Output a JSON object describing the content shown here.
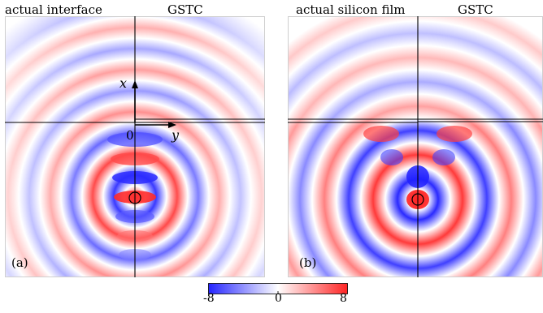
{
  "panel_a": {
    "left_title": "actual interface",
    "right_title": "GSTC",
    "tag": "(a)",
    "axis_x": "x",
    "axis_y": "y",
    "origin": "0"
  },
  "panel_b": {
    "left_title": "actual silicon film",
    "right_title": "GSTC",
    "tag": "(b)"
  },
  "colorbar": {
    "min_label": "-8",
    "mid_label": "0",
    "max_label": "8",
    "colors": {
      "low": "#2424ff",
      "mid": "#ffffff",
      "high": "#ff2424"
    }
  }
}
